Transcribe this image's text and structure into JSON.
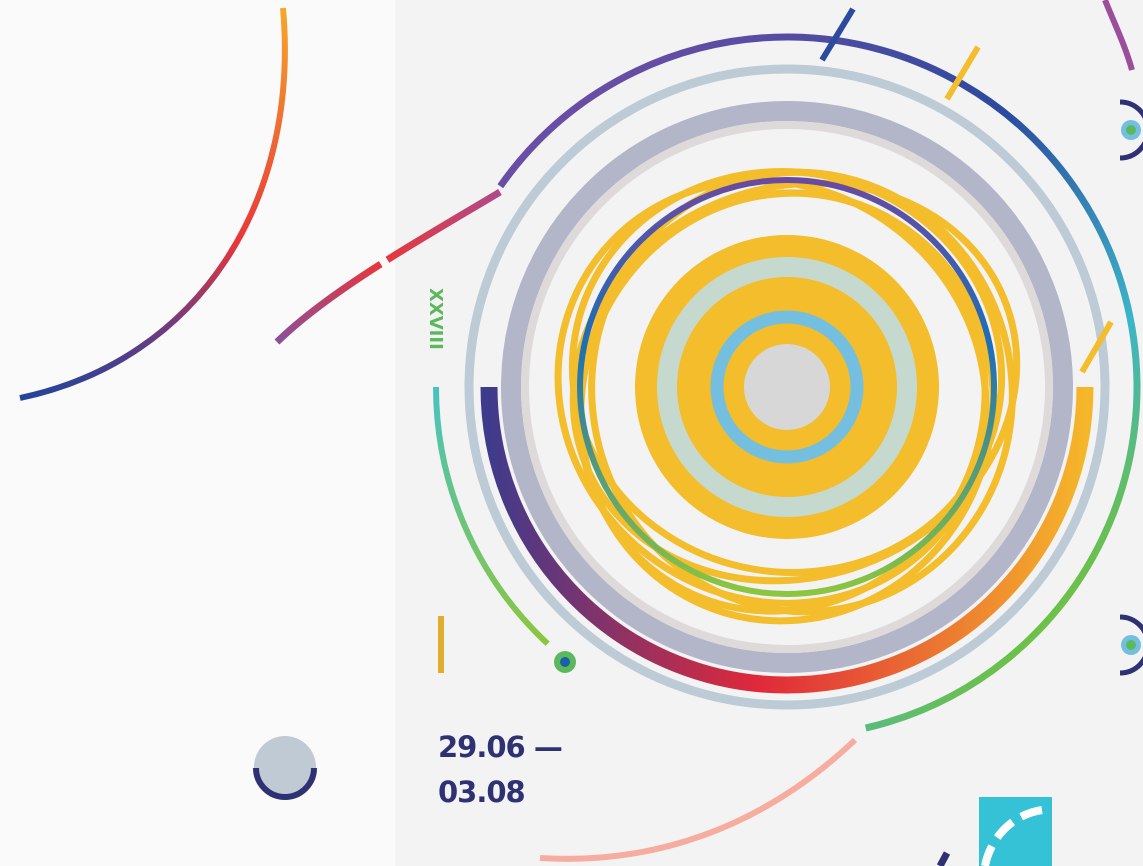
{
  "edition": "XXVIII",
  "dates": [
    "29.06 —",
    "03.08"
  ]
}
